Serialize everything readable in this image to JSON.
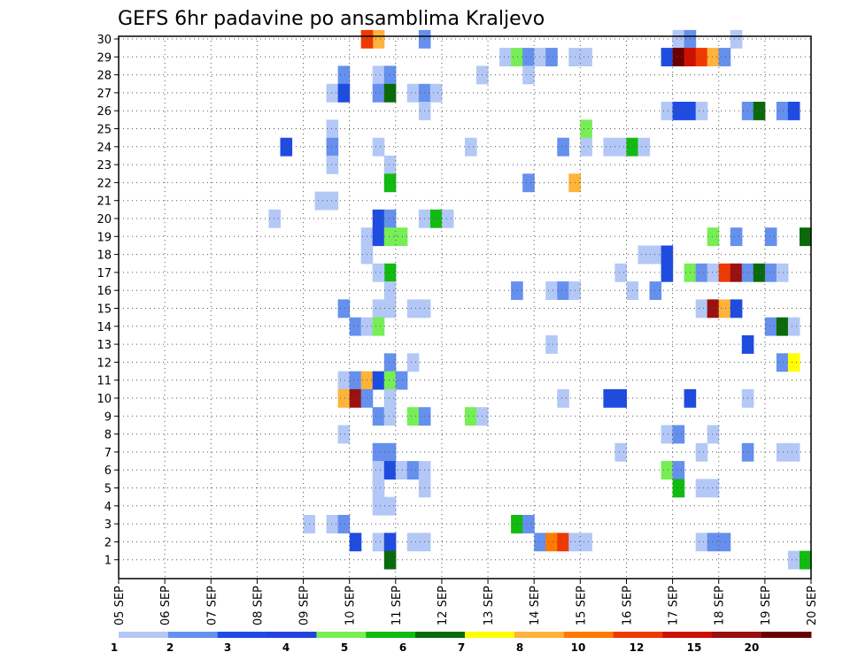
{
  "chart_data": {
    "type": "heatmap",
    "title": "GEFS 6hr padavine po ansamblima Kraljevo",
    "x_tick_labels": [
      "05 SEP",
      "06 SEP",
      "07 SEP",
      "08 SEP",
      "09 SEP",
      "10 SEP",
      "11 SEP",
      "12 SEP",
      "13 SEP",
      "14 SEP",
      "15 SEP",
      "16 SEP",
      "17 SEP",
      "18 SEP",
      "19 SEP",
      "20 SEP"
    ],
    "y_tick_labels": [
      "1",
      "2",
      "3",
      "4",
      "5",
      "6",
      "7",
      "8",
      "9",
      "10",
      "11",
      "12",
      "13",
      "14",
      "15",
      "16",
      "17",
      "18",
      "19",
      "20",
      "21",
      "22",
      "23",
      "24",
      "25",
      "26",
      "27",
      "28",
      "29",
      "30"
    ],
    "grid": true,
    "legend": {
      "placement": "bottom",
      "colors": [
        "#b3c8f6",
        "#6690ee",
        "#1f4ce0",
        "#2244dd",
        "#77ee55",
        "#11bb11",
        "#0a6a0a",
        "#ffff00",
        "#ffb33a",
        "#ff7a00",
        "#ee3a00",
        "#cc1100",
        "#991111",
        "#6a0000"
      ],
      "labels": [
        "1",
        "2",
        "3",
        "4",
        "5",
        "6",
        "7",
        "8",
        "10",
        "12",
        "15",
        "20"
      ]
    },
    "cells": [
      {
        "day": "10 SEP",
        "h": 18,
        "m": 30,
        "c": "#ffb33a"
      },
      {
        "day": "10 SEP",
        "h": 12,
        "m": 30,
        "c": "#ee3a00"
      },
      {
        "day": "11 SEP",
        "h": 18,
        "m": 30,
        "c": "#6690ee"
      },
      {
        "day": "17 SEP",
        "h": 6,
        "m": 30,
        "c": "#b3c8f6"
      },
      {
        "day": "17 SEP",
        "h": 12,
        "m": 30,
        "c": "#6690ee"
      },
      {
        "day": "18 SEP",
        "h": 12,
        "m": 30,
        "c": "#b3c8f6"
      },
      {
        "day": "13 SEP",
        "h": 12,
        "m": 29,
        "c": "#b3c8f6"
      },
      {
        "day": "13 SEP",
        "h": 18,
        "m": 29,
        "c": "#77ee55"
      },
      {
        "day": "14 SEP",
        "h": 0,
        "m": 29,
        "c": "#6690ee"
      },
      {
        "day": "14 SEP",
        "h": 6,
        "m": 29,
        "c": "#b3c8f6"
      },
      {
        "day": "14 SEP",
        "h": 12,
        "m": 29,
        "c": "#6690ee"
      },
      {
        "day": "15 SEP",
        "h": 0,
        "m": 29,
        "c": "#b3c8f6"
      },
      {
        "day": "15 SEP",
        "h": 6,
        "m": 29,
        "c": "#b3c8f6"
      },
      {
        "day": "17 SEP",
        "h": 0,
        "m": 29,
        "c": "#1f4ce0"
      },
      {
        "day": "17 SEP",
        "h": 6,
        "m": 29,
        "c": "#6a0000"
      },
      {
        "day": "17 SEP",
        "h": 12,
        "m": 29,
        "c": "#cc1100"
      },
      {
        "day": "17 SEP",
        "h": 18,
        "m": 29,
        "c": "#ee3a00"
      },
      {
        "day": "18 SEP",
        "h": 0,
        "m": 29,
        "c": "#ffb33a"
      },
      {
        "day": "18 SEP",
        "h": 6,
        "m": 29,
        "c": "#6690ee"
      },
      {
        "day": "10 SEP",
        "h": 0,
        "m": 28,
        "c": "#6690ee"
      },
      {
        "day": "10 SEP",
        "h": 18,
        "m": 28,
        "c": "#b3c8f6"
      },
      {
        "day": "11 SEP",
        "h": 0,
        "m": 28,
        "c": "#6690ee"
      },
      {
        "day": "13 SEP",
        "h": 0,
        "m": 28,
        "c": "#b3c8f6"
      },
      {
        "day": "14 SEP",
        "h": 0,
        "m": 28,
        "c": "#b3c8f6"
      },
      {
        "day": "09 SEP",
        "h": 18,
        "m": 27,
        "c": "#b3c8f6"
      },
      {
        "day": "10 SEP",
        "h": 0,
        "m": 27,
        "c": "#1f4ce0"
      },
      {
        "day": "10 SEP",
        "h": 18,
        "m": 27,
        "c": "#6690ee"
      },
      {
        "day": "11 SEP",
        "h": 0,
        "m": 27,
        "c": "#0a6a0a"
      },
      {
        "day": "11 SEP",
        "h": 12,
        "m": 27,
        "c": "#b3c8f6"
      },
      {
        "day": "11 SEP",
        "h": 18,
        "m": 27,
        "c": "#6690ee"
      },
      {
        "day": "12 SEP",
        "h": 0,
        "m": 27,
        "c": "#b3c8f6"
      },
      {
        "day": "11 SEP",
        "h": 18,
        "m": 26,
        "c": "#b3c8f6"
      },
      {
        "day": "17 SEP",
        "h": 0,
        "m": 26,
        "c": "#b3c8f6"
      },
      {
        "day": "17 SEP",
        "h": 6,
        "m": 26,
        "c": "#1f4ce0"
      },
      {
        "day": "17 SEP",
        "h": 12,
        "m": 26,
        "c": "#1f4ce0"
      },
      {
        "day": "17 SEP",
        "h": 18,
        "m": 26,
        "c": "#b3c8f6"
      },
      {
        "day": "18 SEP",
        "h": 18,
        "m": 26,
        "c": "#6690ee"
      },
      {
        "day": "19 SEP",
        "h": 0,
        "m": 26,
        "c": "#0a6a0a"
      },
      {
        "day": "19 SEP",
        "h": 12,
        "m": 26,
        "c": "#6690ee"
      },
      {
        "day": "19 SEP",
        "h": 18,
        "m": 26,
        "c": "#1f4ce0"
      },
      {
        "day": "09 SEP",
        "h": 18,
        "m": 25,
        "c": "#b3c8f6"
      },
      {
        "day": "15 SEP",
        "h": 6,
        "m": 25,
        "c": "#77ee55"
      },
      {
        "day": "08 SEP",
        "h": 18,
        "m": 24,
        "c": "#1f4ce0"
      },
      {
        "day": "09 SEP",
        "h": 18,
        "m": 24,
        "c": "#6690ee"
      },
      {
        "day": "10 SEP",
        "h": 18,
        "m": 24,
        "c": "#b3c8f6"
      },
      {
        "day": "12 SEP",
        "h": 18,
        "m": 24,
        "c": "#b3c8f6"
      },
      {
        "day": "14 SEP",
        "h": 18,
        "m": 24,
        "c": "#6690ee"
      },
      {
        "day": "15 SEP",
        "h": 6,
        "m": 24,
        "c": "#b3c8f6"
      },
      {
        "day": "15 SEP",
        "h": 18,
        "m": 24,
        "c": "#b3c8f6"
      },
      {
        "day": "16 SEP",
        "h": 0,
        "m": 24,
        "c": "#b3c8f6"
      },
      {
        "day": "16 SEP",
        "h": 6,
        "m": 24,
        "c": "#11bb11"
      },
      {
        "day": "16 SEP",
        "h": 12,
        "m": 24,
        "c": "#b3c8f6"
      },
      {
        "day": "09 SEP",
        "h": 18,
        "m": 23,
        "c": "#b3c8f6"
      },
      {
        "day": "11 SEP",
        "h": 0,
        "m": 23,
        "c": "#b3c8f6"
      },
      {
        "day": "11 SEP",
        "h": 0,
        "m": 22,
        "c": "#11bb11"
      },
      {
        "day": "14 SEP",
        "h": 0,
        "m": 22,
        "c": "#6690ee"
      },
      {
        "day": "15 SEP",
        "h": 0,
        "m": 22,
        "c": "#ffb33a"
      },
      {
        "day": "09 SEP",
        "h": 12,
        "m": 21,
        "c": "#b3c8f6"
      },
      {
        "day": "09 SEP",
        "h": 18,
        "m": 21,
        "c": "#b3c8f6"
      },
      {
        "day": "08 SEP",
        "h": 12,
        "m": 20,
        "c": "#b3c8f6"
      },
      {
        "day": "10 SEP",
        "h": 18,
        "m": 20,
        "c": "#1f4ce0"
      },
      {
        "day": "11 SEP",
        "h": 0,
        "m": 20,
        "c": "#6690ee"
      },
      {
        "day": "11 SEP",
        "h": 18,
        "m": 20,
        "c": "#b3c8f6"
      },
      {
        "day": "12 SEP",
        "h": 0,
        "m": 20,
        "c": "#11bb11"
      },
      {
        "day": "12 SEP",
        "h": 6,
        "m": 20,
        "c": "#b3c8f6"
      },
      {
        "day": "10 SEP",
        "h": 12,
        "m": 19,
        "c": "#b3c8f6"
      },
      {
        "day": "10 SEP",
        "h": 18,
        "m": 19,
        "c": "#1f4ce0"
      },
      {
        "day": "11 SEP",
        "h": 0,
        "m": 19,
        "c": "#77ee55"
      },
      {
        "day": "11 SEP",
        "h": 6,
        "m": 19,
        "c": "#77ee55"
      },
      {
        "day": "18 SEP",
        "h": 0,
        "m": 19,
        "c": "#77ee55"
      },
      {
        "day": "18 SEP",
        "h": 12,
        "m": 19,
        "c": "#6690ee"
      },
      {
        "day": "19 SEP",
        "h": 6,
        "m": 19,
        "c": "#6690ee"
      },
      {
        "day": "20 SEP",
        "h": 0,
        "m": 19,
        "c": "#0a6a0a"
      },
      {
        "day": "10 SEP",
        "h": 12,
        "m": 18,
        "c": "#b3c8f6"
      },
      {
        "day": "16 SEP",
        "h": 18,
        "m": 18,
        "c": "#b3c8f6"
      },
      {
        "day": "16 SEP",
        "h": 12,
        "m": 18,
        "c": "#b3c8f6"
      },
      {
        "day": "17 SEP",
        "h": 0,
        "m": 18,
        "c": "#1f4ce0"
      },
      {
        "day": "11 SEP",
        "h": 0,
        "m": 17,
        "c": "#11bb11"
      },
      {
        "day": "10 SEP",
        "h": 18,
        "m": 17,
        "c": "#b3c8f6"
      },
      {
        "day": "16 SEP",
        "h": 0,
        "m": 17,
        "c": "#b3c8f6"
      },
      {
        "day": "17 SEP",
        "h": 0,
        "m": 17,
        "c": "#1f4ce0"
      },
      {
        "day": "17 SEP",
        "h": 12,
        "m": 17,
        "c": "#77ee55"
      },
      {
        "day": "17 SEP",
        "h": 18,
        "m": 17,
        "c": "#6690ee"
      },
      {
        "day": "18 SEP",
        "h": 0,
        "m": 17,
        "c": "#b3c8f6"
      },
      {
        "day": "18 SEP",
        "h": 6,
        "m": 17,
        "c": "#ee3a00"
      },
      {
        "day": "18 SEP",
        "h": 12,
        "m": 17,
        "c": "#991111"
      },
      {
        "day": "18 SEP",
        "h": 18,
        "m": 17,
        "c": "#6690ee"
      },
      {
        "day": "19 SEP",
        "h": 0,
        "m": 17,
        "c": "#0a6a0a"
      },
      {
        "day": "19 SEP",
        "h": 6,
        "m": 17,
        "c": "#6690ee"
      },
      {
        "day": "19 SEP",
        "h": 12,
        "m": 17,
        "c": "#b3c8f6"
      },
      {
        "day": "11 SEP",
        "h": 0,
        "m": 16,
        "c": "#b3c8f6"
      },
      {
        "day": "13 SEP",
        "h": 18,
        "m": 16,
        "c": "#6690ee"
      },
      {
        "day": "14 SEP",
        "h": 12,
        "m": 16,
        "c": "#b3c8f6"
      },
      {
        "day": "14 SEP",
        "h": 18,
        "m": 16,
        "c": "#6690ee"
      },
      {
        "day": "15 SEP",
        "h": 0,
        "m": 16,
        "c": "#b3c8f6"
      },
      {
        "day": "16 SEP",
        "h": 6,
        "m": 16,
        "c": "#b3c8f6"
      },
      {
        "day": "16 SEP",
        "h": 18,
        "m": 16,
        "c": "#6690ee"
      },
      {
        "day": "10 SEP",
        "h": 0,
        "m": 15,
        "c": "#6690ee"
      },
      {
        "day": "10 SEP",
        "h": 18,
        "m": 15,
        "c": "#b3c8f6"
      },
      {
        "day": "11 SEP",
        "h": 0,
        "m": 15,
        "c": "#b3c8f6"
      },
      {
        "day": "11 SEP",
        "h": 12,
        "m": 15,
        "c": "#b3c8f6"
      },
      {
        "day": "11 SEP",
        "h": 18,
        "m": 15,
        "c": "#b3c8f6"
      },
      {
        "day": "17 SEP",
        "h": 18,
        "m": 15,
        "c": "#b3c8f6"
      },
      {
        "day": "18 SEP",
        "h": 0,
        "m": 15,
        "c": "#991111"
      },
      {
        "day": "18 SEP",
        "h": 6,
        "m": 15,
        "c": "#ffb33a"
      },
      {
        "day": "18 SEP",
        "h": 12,
        "m": 15,
        "c": "#1f4ce0"
      },
      {
        "day": "10 SEP",
        "h": 6,
        "m": 14,
        "c": "#6690ee"
      },
      {
        "day": "10 SEP",
        "h": 12,
        "m": 14,
        "c": "#b3c8f6"
      },
      {
        "day": "10 SEP",
        "h": 18,
        "m": 14,
        "c": "#77ee55"
      },
      {
        "day": "19 SEP",
        "h": 6,
        "m": 14,
        "c": "#6690ee"
      },
      {
        "day": "19 SEP",
        "h": 12,
        "m": 14,
        "c": "#0a6a0a"
      },
      {
        "day": "19 SEP",
        "h": 18,
        "m": 14,
        "c": "#b3c8f6"
      },
      {
        "day": "14 SEP",
        "h": 12,
        "m": 13,
        "c": "#b3c8f6"
      },
      {
        "day": "18 SEP",
        "h": 18,
        "m": 13,
        "c": "#1f4ce0"
      },
      {
        "day": "11 SEP",
        "h": 0,
        "m": 12,
        "c": "#6690ee"
      },
      {
        "day": "11 SEP",
        "h": 12,
        "m": 12,
        "c": "#b3c8f6"
      },
      {
        "day": "19 SEP",
        "h": 12,
        "m": 12,
        "c": "#6690ee"
      },
      {
        "day": "19 SEP",
        "h": 18,
        "m": 12,
        "c": "#ffff00"
      },
      {
        "day": "10 SEP",
        "h": 0,
        "m": 11,
        "c": "#b3c8f6"
      },
      {
        "day": "10 SEP",
        "h": 6,
        "m": 11,
        "c": "#6690ee"
      },
      {
        "day": "10 SEP",
        "h": 12,
        "m": 11,
        "c": "#ffb33a"
      },
      {
        "day": "10 SEP",
        "h": 18,
        "m": 11,
        "c": "#1f4ce0"
      },
      {
        "day": "11 SEP",
        "h": 0,
        "m": 11,
        "c": "#77ee55"
      },
      {
        "day": "11 SEP",
        "h": 6,
        "m": 11,
        "c": "#6690ee"
      },
      {
        "day": "10 SEP",
        "h": 0,
        "m": 10,
        "c": "#ffb33a"
      },
      {
        "day": "10 SEP",
        "h": 6,
        "m": 10,
        "c": "#991111"
      },
      {
        "day": "10 SEP",
        "h": 12,
        "m": 10,
        "c": "#6690ee"
      },
      {
        "day": "11 SEP",
        "h": 0,
        "m": 10,
        "c": "#b3c8f6"
      },
      {
        "day": "14 SEP",
        "h": 18,
        "m": 10,
        "c": "#b3c8f6"
      },
      {
        "day": "15 SEP",
        "h": 18,
        "m": 10,
        "c": "#1f4ce0"
      },
      {
        "day": "16 SEP",
        "h": 0,
        "m": 10,
        "c": "#1f4ce0"
      },
      {
        "day": "17 SEP",
        "h": 12,
        "m": 10,
        "c": "#1f4ce0"
      },
      {
        "day": "18 SEP",
        "h": 18,
        "m": 10,
        "c": "#b3c8f6"
      },
      {
        "day": "10 SEP",
        "h": 18,
        "m": 9,
        "c": "#6690ee"
      },
      {
        "day": "11 SEP",
        "h": 0,
        "m": 9,
        "c": "#b3c8f6"
      },
      {
        "day": "11 SEP",
        "h": 12,
        "m": 9,
        "c": "#77ee55"
      },
      {
        "day": "11 SEP",
        "h": 18,
        "m": 9,
        "c": "#6690ee"
      },
      {
        "day": "12 SEP",
        "h": 18,
        "m": 9,
        "c": "#77ee55"
      },
      {
        "day": "13 SEP",
        "h": 0,
        "m": 9,
        "c": "#b3c8f6"
      },
      {
        "day": "10 SEP",
        "h": 0,
        "m": 8,
        "c": "#b3c8f6"
      },
      {
        "day": "17 SEP",
        "h": 0,
        "m": 8,
        "c": "#b3c8f6"
      },
      {
        "day": "17 SEP",
        "h": 6,
        "m": 8,
        "c": "#6690ee"
      },
      {
        "day": "18 SEP",
        "h": 0,
        "m": 8,
        "c": "#b3c8f6"
      },
      {
        "day": "10 SEP",
        "h": 18,
        "m": 7,
        "c": "#6690ee"
      },
      {
        "day": "11 SEP",
        "h": 0,
        "m": 7,
        "c": "#6690ee"
      },
      {
        "day": "16 SEP",
        "h": 0,
        "m": 7,
        "c": "#b3c8f6"
      },
      {
        "day": "17 SEP",
        "h": 18,
        "m": 7,
        "c": "#b3c8f6"
      },
      {
        "day": "18 SEP",
        "h": 18,
        "m": 7,
        "c": "#6690ee"
      },
      {
        "day": "19 SEP",
        "h": 12,
        "m": 7,
        "c": "#b3c8f6"
      },
      {
        "day": "19 SEP",
        "h": 18,
        "m": 7,
        "c": "#b3c8f6"
      },
      {
        "day": "10 SEP",
        "h": 18,
        "m": 6,
        "c": "#b3c8f6"
      },
      {
        "day": "11 SEP",
        "h": 0,
        "m": 6,
        "c": "#1f4ce0"
      },
      {
        "day": "11 SEP",
        "h": 6,
        "m": 6,
        "c": "#b3c8f6"
      },
      {
        "day": "11 SEP",
        "h": 12,
        "m": 6,
        "c": "#6690ee"
      },
      {
        "day": "11 SEP",
        "h": 18,
        "m": 6,
        "c": "#b3c8f6"
      },
      {
        "day": "17 SEP",
        "h": 0,
        "m": 6,
        "c": "#77ee55"
      },
      {
        "day": "17 SEP",
        "h": 6,
        "m": 6,
        "c": "#6690ee"
      },
      {
        "day": "10 SEP",
        "h": 18,
        "m": 5,
        "c": "#b3c8f6"
      },
      {
        "day": "11 SEP",
        "h": 18,
        "m": 5,
        "c": "#b3c8f6"
      },
      {
        "day": "17 SEP",
        "h": 6,
        "m": 5,
        "c": "#11bb11"
      },
      {
        "day": "17 SEP",
        "h": 18,
        "m": 5,
        "c": "#b3c8f6"
      },
      {
        "day": "18 SEP",
        "h": 0,
        "m": 5,
        "c": "#b3c8f6"
      },
      {
        "day": "10 SEP",
        "h": 18,
        "m": 4,
        "c": "#b3c8f6"
      },
      {
        "day": "11 SEP",
        "h": 0,
        "m": 4,
        "c": "#b3c8f6"
      },
      {
        "day": "09 SEP",
        "h": 6,
        "m": 3,
        "c": "#b3c8f6"
      },
      {
        "day": "09 SEP",
        "h": 18,
        "m": 3,
        "c": "#b3c8f6"
      },
      {
        "day": "10 SEP",
        "h": 0,
        "m": 3,
        "c": "#6690ee"
      },
      {
        "day": "13 SEP",
        "h": 18,
        "m": 3,
        "c": "#11bb11"
      },
      {
        "day": "14 SEP",
        "h": 0,
        "m": 3,
        "c": "#6690ee"
      },
      {
        "day": "10 SEP",
        "h": 6,
        "m": 2,
        "c": "#1f4ce0"
      },
      {
        "day": "10 SEP",
        "h": 18,
        "m": 2,
        "c": "#b3c8f6"
      },
      {
        "day": "11 SEP",
        "h": 0,
        "m": 2,
        "c": "#1f4ce0"
      },
      {
        "day": "11 SEP",
        "h": 12,
        "m": 2,
        "c": "#b3c8f6"
      },
      {
        "day": "11 SEP",
        "h": 18,
        "m": 2,
        "c": "#b3c8f6"
      },
      {
        "day": "14 SEP",
        "h": 6,
        "m": 2,
        "c": "#6690ee"
      },
      {
        "day": "14 SEP",
        "h": 12,
        "m": 2,
        "c": "#ff7a00"
      },
      {
        "day": "14 SEP",
        "h": 18,
        "m": 2,
        "c": "#ee3a00"
      },
      {
        "day": "15 SEP",
        "h": 0,
        "m": 2,
        "c": "#b3c8f6"
      },
      {
        "day": "15 SEP",
        "h": 6,
        "m": 2,
        "c": "#b3c8f6"
      },
      {
        "day": "17 SEP",
        "h": 18,
        "m": 2,
        "c": "#b3c8f6"
      },
      {
        "day": "18 SEP",
        "h": 0,
        "m": 2,
        "c": "#6690ee"
      },
      {
        "day": "18 SEP",
        "h": 6,
        "m": 2,
        "c": "#6690ee"
      },
      {
        "day": "11 SEP",
        "h": 0,
        "m": 1,
        "c": "#0a6a0a"
      },
      {
        "day": "19 SEP",
        "h": 18,
        "m": 1,
        "c": "#b3c8f6"
      },
      {
        "day": "20 SEP",
        "h": 0,
        "m": 1,
        "c": "#11bb11"
      }
    ]
  }
}
